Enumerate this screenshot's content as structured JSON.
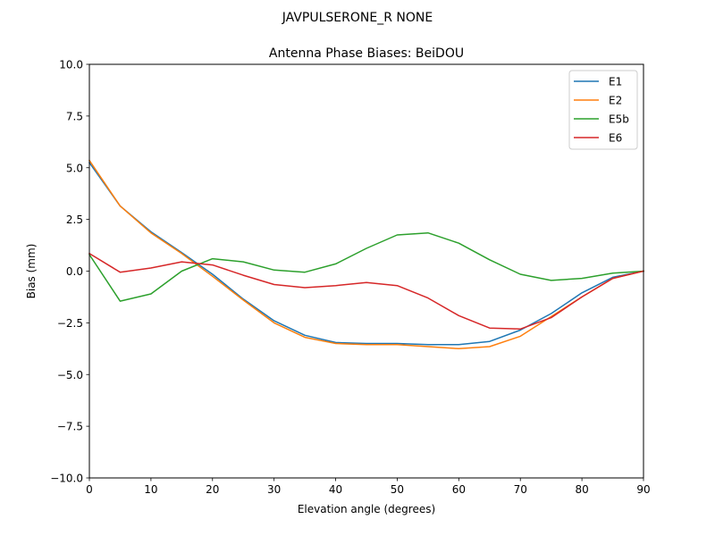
{
  "chart_data": {
    "type": "line",
    "suptitle": "JAVPULSERONE_R  NONE",
    "title": "Antenna Phase Biases: BeiDOU",
    "xlabel": "Elevation angle (degrees)",
    "ylabel": "Bias (mm)",
    "xlim": [
      0,
      90
    ],
    "ylim": [
      -10,
      10
    ],
    "xticks": [
      0,
      10,
      20,
      30,
      40,
      50,
      60,
      70,
      80,
      90
    ],
    "yticks": [
      -10.0,
      -7.5,
      -5.0,
      -2.5,
      0.0,
      2.5,
      5.0,
      7.5,
      10.0
    ],
    "xtick_labels": [
      "0",
      "10",
      "20",
      "30",
      "40",
      "50",
      "60",
      "70",
      "80",
      "90"
    ],
    "ytick_labels": [
      "−10.0",
      "−7.5",
      "−5.0",
      "−2.5",
      "0.0",
      "2.5",
      "5.0",
      "7.5",
      "10.0"
    ],
    "grid": false,
    "legend_position": "top-right",
    "x": [
      0,
      5,
      10,
      15,
      20,
      25,
      30,
      35,
      40,
      45,
      50,
      55,
      60,
      65,
      70,
      75,
      80,
      85,
      90
    ],
    "series": [
      {
        "name": "E1",
        "color": "#1f77b4",
        "values": [
          5.25,
          3.15,
          1.9,
          0.9,
          -0.15,
          -1.35,
          -2.4,
          -3.1,
          -3.45,
          -3.5,
          -3.5,
          -3.55,
          -3.55,
          -3.4,
          -2.85,
          -2.05,
          -1.05,
          -0.3,
          0.0
        ]
      },
      {
        "name": "E2",
        "color": "#ff7f0e",
        "values": [
          5.35,
          3.15,
          1.85,
          0.85,
          -0.25,
          -1.4,
          -2.5,
          -3.2,
          -3.5,
          -3.55,
          -3.55,
          -3.65,
          -3.75,
          -3.65,
          -3.15,
          -2.2,
          -1.25,
          -0.35,
          0.0
        ]
      },
      {
        "name": "E5b",
        "color": "#2ca02c",
        "values": [
          0.8,
          -1.45,
          -1.1,
          0.0,
          0.6,
          0.45,
          0.05,
          -0.05,
          0.35,
          1.1,
          1.75,
          1.85,
          1.35,
          0.55,
          -0.15,
          -0.45,
          -0.35,
          -0.1,
          0.0
        ]
      },
      {
        "name": "E6",
        "color": "#d62728",
        "values": [
          0.85,
          -0.05,
          0.15,
          0.45,
          0.3,
          -0.2,
          -0.65,
          -0.8,
          -0.7,
          -0.55,
          -0.7,
          -1.3,
          -2.15,
          -2.75,
          -2.8,
          -2.25,
          -1.25,
          -0.35,
          0.0
        ]
      }
    ]
  }
}
